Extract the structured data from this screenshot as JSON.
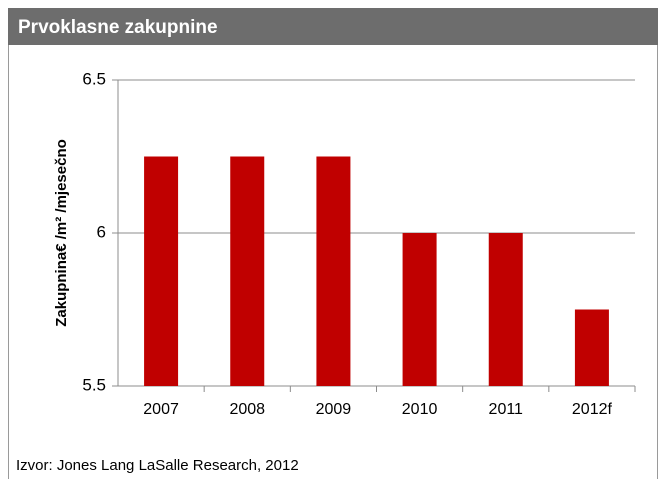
{
  "chart_data": {
    "type": "bar",
    "title": "Prvoklasne zakupnine",
    "y_label": "Zakupnina€ /m² /mjesečno",
    "source": "Izvor: Jones Lang LaSalle Research, 2012",
    "categories": [
      "2007",
      "2008",
      "2009",
      "2010",
      "2011",
      "2012f"
    ],
    "values": [
      6.25,
      6.25,
      6.25,
      6,
      6,
      5.75
    ],
    "color": "#c00000",
    "ylim": [
      5.5,
      6.5
    ],
    "yticks": [
      5.5,
      6,
      6.5
    ],
    "grid": true
  }
}
